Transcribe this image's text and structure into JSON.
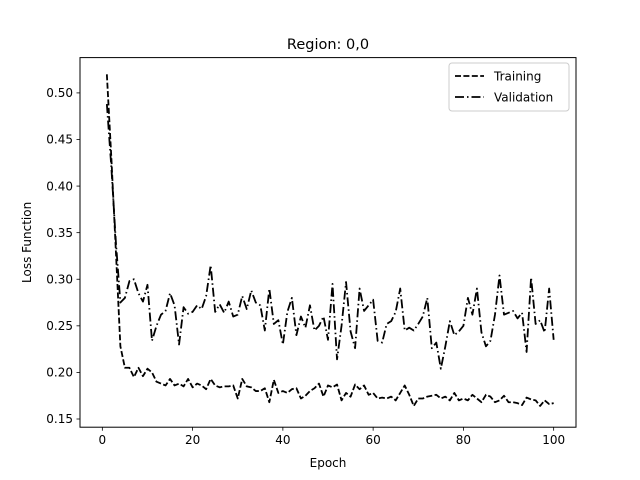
{
  "chart_data": {
    "type": "line",
    "title": "Region: 0,0",
    "xlabel": "Epoch",
    "ylabel": "Loss Function",
    "xlim": [
      -4.95,
      104.95
    ],
    "ylim": [
      0.1412,
      0.5379
    ],
    "xticks": [
      0,
      20,
      40,
      60,
      80,
      100
    ],
    "xtick_labels": [
      "0",
      "20",
      "40",
      "60",
      "80",
      "100"
    ],
    "yticks": [
      0.15,
      0.2,
      0.25,
      0.3,
      0.35,
      0.4,
      0.45,
      0.5
    ],
    "ytick_labels": [
      "0.15",
      "0.20",
      "0.25",
      "0.30",
      "0.35",
      "0.40",
      "0.45",
      "0.50"
    ],
    "grid": false,
    "legend_position": "top-right",
    "x": [
      1,
      2,
      3,
      4,
      5,
      6,
      7,
      8,
      9,
      10,
      11,
      12,
      13,
      14,
      15,
      16,
      17,
      18,
      19,
      20,
      21,
      22,
      23,
      24,
      25,
      26,
      27,
      28,
      29,
      30,
      31,
      32,
      33,
      34,
      35,
      36,
      37,
      38,
      39,
      40,
      41,
      42,
      43,
      44,
      45,
      46,
      47,
      48,
      49,
      50,
      51,
      52,
      53,
      54,
      55,
      56,
      57,
      58,
      59,
      60,
      61,
      62,
      63,
      64,
      65,
      66,
      67,
      68,
      69,
      70,
      71,
      72,
      73,
      74,
      75,
      76,
      77,
      78,
      79,
      80,
      81,
      82,
      83,
      84,
      85,
      86,
      87,
      88,
      89,
      90,
      91,
      92,
      93,
      94,
      95,
      96,
      97,
      98,
      99,
      100
    ],
    "series": [
      {
        "name": "Training",
        "style": "dashed",
        "values": [
          0.52,
          0.43,
          0.33,
          0.228,
          0.205,
          0.205,
          0.195,
          0.205,
          0.196,
          0.204,
          0.2,
          0.19,
          0.188,
          0.186,
          0.193,
          0.186,
          0.188,
          0.185,
          0.193,
          0.184,
          0.188,
          0.186,
          0.182,
          0.193,
          0.186,
          0.184,
          0.185,
          0.185,
          0.186,
          0.172,
          0.193,
          0.185,
          0.184,
          0.18,
          0.18,
          0.183,
          0.168,
          0.192,
          0.178,
          0.18,
          0.178,
          0.182,
          0.183,
          0.172,
          0.175,
          0.18,
          0.183,
          0.188,
          0.174,
          0.186,
          0.184,
          0.187,
          0.17,
          0.178,
          0.174,
          0.187,
          0.182,
          0.186,
          0.176,
          0.178,
          0.172,
          0.173,
          0.172,
          0.174,
          0.17,
          0.178,
          0.186,
          0.176,
          0.164,
          0.172,
          0.172,
          0.174,
          0.175,
          0.176,
          0.172,
          0.174,
          0.17,
          0.178,
          0.17,
          0.172,
          0.17,
          0.176,
          0.172,
          0.168,
          0.176,
          0.174,
          0.168,
          0.17,
          0.175,
          0.168,
          0.168,
          0.167,
          0.165,
          0.173,
          0.171,
          0.17,
          0.164,
          0.17,
          0.166,
          0.167
        ]
      },
      {
        "name": "Validation",
        "style": "dashdot",
        "values": [
          0.488,
          0.42,
          0.34,
          0.275,
          0.28,
          0.298,
          0.3,
          0.285,
          0.276,
          0.294,
          0.234,
          0.25,
          0.262,
          0.266,
          0.285,
          0.272,
          0.23,
          0.27,
          0.263,
          0.265,
          0.272,
          0.268,
          0.282,
          0.315,
          0.265,
          0.273,
          0.264,
          0.276,
          0.26,
          0.262,
          0.282,
          0.268,
          0.288,
          0.275,
          0.272,
          0.245,
          0.29,
          0.252,
          0.256,
          0.23,
          0.265,
          0.28,
          0.24,
          0.26,
          0.248,
          0.272,
          0.245,
          0.25,
          0.26,
          0.235,
          0.295,
          0.214,
          0.25,
          0.297,
          0.244,
          0.226,
          0.29,
          0.266,
          0.272,
          0.278,
          0.234,
          0.232,
          0.252,
          0.255,
          0.265,
          0.29,
          0.245,
          0.248,
          0.245,
          0.252,
          0.26,
          0.28,
          0.226,
          0.232,
          0.204,
          0.228,
          0.255,
          0.24,
          0.244,
          0.25,
          0.28,
          0.262,
          0.29,
          0.243,
          0.228,
          0.234,
          0.262,
          0.304,
          0.262,
          0.264,
          0.266,
          0.258,
          0.264,
          0.222,
          0.302,
          0.252,
          0.256,
          0.243,
          0.29,
          0.235
        ]
      }
    ]
  }
}
